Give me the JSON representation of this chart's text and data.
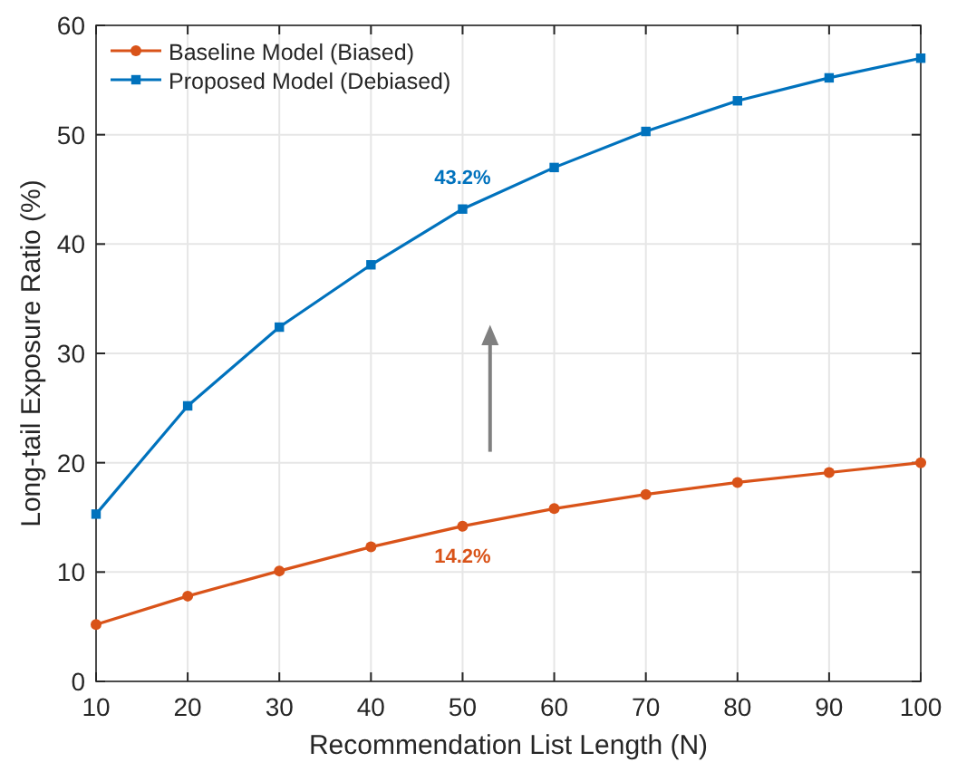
{
  "chart_data": {
    "type": "line",
    "xlabel": "Recommendation List Length (N)",
    "ylabel": "Long-tail Exposure Ratio (%)",
    "x": [
      10,
      20,
      30,
      40,
      50,
      60,
      70,
      80,
      90,
      100
    ],
    "series": [
      {
        "name": "Baseline Model (Biased)",
        "color": "#d95319",
        "marker": "circle",
        "values": [
          5.2,
          7.8,
          10.1,
          12.3,
          14.2,
          15.8,
          17.1,
          18.2,
          19.1,
          20.0
        ]
      },
      {
        "name": "Proposed Model (Debiased)",
        "color": "#0072bd",
        "marker": "square",
        "values": [
          15.3,
          25.2,
          32.4,
          38.1,
          43.2,
          47.0,
          50.3,
          53.1,
          55.2,
          57.0
        ]
      }
    ],
    "annotations": [
      {
        "text": "43.2%",
        "x": 50,
        "y": 43.2
      },
      {
        "text": "14.2%",
        "x": 50,
        "y": 14.2
      }
    ],
    "xlim": [
      10,
      100
    ],
    "xticks": [
      10,
      20,
      30,
      40,
      50,
      60,
      70,
      80,
      90,
      100
    ],
    "ylim": [
      0,
      60
    ],
    "yticks": [
      0,
      10,
      20,
      30,
      40,
      50,
      60
    ],
    "grid": true,
    "legend": "top left",
    "line_style": "solid"
  }
}
